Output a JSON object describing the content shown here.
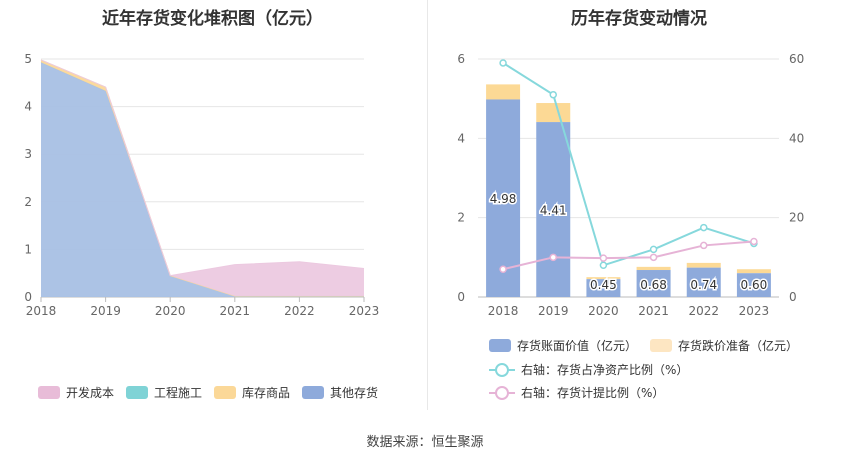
{
  "left_title": "近年存货变化堆积图（亿元）",
  "right_title": "历年存货变动情况",
  "source_text": "数据来源：恒生聚源",
  "colors": {
    "kaifa": "#e8bcd8",
    "gongcheng": "#7fd3d6",
    "kucun": "#fbd898",
    "qita": "#9bb5e0",
    "book": "#8eaadb",
    "drop": "#fcd995",
    "ratio_line": "#86d8dc",
    "provision_line": "#e6b3d6"
  },
  "legend_left": [
    {
      "label": "开发成本",
      "color": "#e8bcd8"
    },
    {
      "label": "工程施工",
      "color": "#7fd3d6"
    },
    {
      "label": "库存商品",
      "color": "#fbd898"
    },
    {
      "label": "其他存货",
      "color": "#8eaadb"
    }
  ],
  "legend_right": [
    {
      "label": "存货账面价值（亿元）",
      "color": "#8eaadb"
    },
    {
      "label": "存货跌价准备（亿元）",
      "color": "#fde6c2"
    },
    {
      "label": "右轴：存货占净资产比例（%）",
      "color": "#86d8dc"
    },
    {
      "label": "右轴：存货计提比例（%）",
      "color": "#e6b3d6"
    }
  ],
  "chart_data": [
    {
      "type": "area",
      "title": "近年存货变化堆积图（亿元）",
      "x": [
        "2018",
        "2019",
        "2020",
        "2021",
        "2022",
        "2023"
      ],
      "ylim": [
        0,
        5
      ],
      "yticks": [
        0,
        1,
        2,
        3,
        4,
        5
      ],
      "stacked": true,
      "series": [
        {
          "name": "其他存货",
          "values": [
            4.93,
            4.33,
            0.45,
            0.02,
            0.02,
            0.02
          ]
        },
        {
          "name": "工程施工",
          "values": [
            0,
            0,
            0,
            0,
            0,
            0
          ]
        },
        {
          "name": "库存商品",
          "values": [
            0.05,
            0.08,
            0.0,
            0.0,
            0.0,
            0.0
          ]
        },
        {
          "name": "开发成本",
          "values": [
            0,
            0,
            0.0,
            0.66,
            0.72,
            0.58
          ]
        }
      ],
      "grid": true,
      "legend": "bottom"
    },
    {
      "type": "bar",
      "title": "历年存货变动情况",
      "categories": [
        "2018",
        "2019",
        "2020",
        "2021",
        "2022",
        "2023"
      ],
      "ylim": [
        0,
        6
      ],
      "yticks": [
        0,
        2,
        4,
        6
      ],
      "y2lim": [
        0,
        60
      ],
      "y2ticks": [
        0,
        20,
        40,
        60
      ],
      "series": [
        {
          "name": "存货账面价值（亿元）",
          "values": [
            4.98,
            4.41,
            0.45,
            0.68,
            0.74,
            0.6
          ],
          "labels": [
            "4.98",
            "4.41",
            "0.45",
            "0.68",
            "0.74",
            "0.60"
          ]
        },
        {
          "name": "存货跌价准备（亿元）",
          "values": [
            0.38,
            0.48,
            0.05,
            0.08,
            0.12,
            0.1
          ]
        },
        {
          "name": "右轴：存货占净资产比例（%）",
          "axis": "right",
          "type": "line",
          "values": [
            59,
            51,
            8,
            12,
            17.5,
            13.5
          ]
        },
        {
          "name": "右轴：存货计提比例（%）",
          "axis": "right",
          "type": "line",
          "values": [
            7,
            10,
            9.8,
            10,
            13,
            14
          ]
        }
      ],
      "grid": true,
      "legend": "bottom"
    }
  ]
}
